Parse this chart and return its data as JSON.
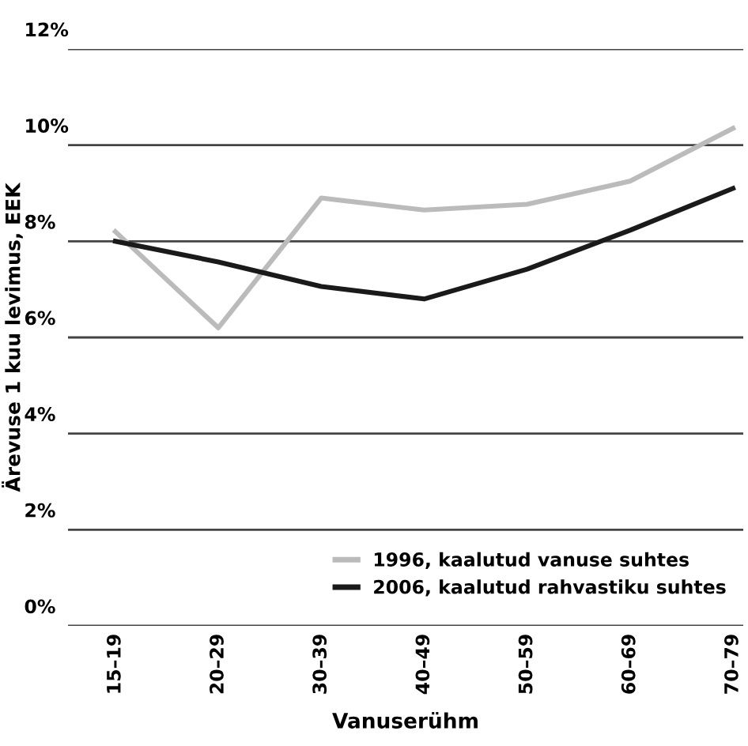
{
  "chart_data": {
    "type": "line",
    "xlabel": "Vanuserühm",
    "ylabel": "Ärevuse 1 kuu levimus, EEK",
    "categories": [
      "15–19",
      "20–29",
      "30–39",
      "40–49",
      "50–59",
      "60–69",
      "70–79"
    ],
    "series": [
      {
        "name": "1996, kaalutud vanuse suhtes",
        "color": "#bbbbbb",
        "values": [
          8.2,
          6.2,
          8.9,
          8.65,
          8.77,
          9.25,
          10.35
        ]
      },
      {
        "name": "2006, kaalutud rahvastiku suhtes",
        "color": "#1a1a1a",
        "values": [
          8.0,
          7.57,
          7.06,
          6.8,
          7.42,
          8.23,
          9.1
        ]
      }
    ],
    "ylim": [
      0,
      12
    ],
    "yticks": [
      {
        "value": 0,
        "label": "0%"
      },
      {
        "value": 2,
        "label": "2%"
      },
      {
        "value": 4,
        "label": "4%"
      },
      {
        "value": 6,
        "label": "6%"
      },
      {
        "value": 8,
        "label": "8%"
      },
      {
        "value": 10,
        "label": "10%"
      },
      {
        "value": 12,
        "label": "12%"
      }
    ],
    "grid": "y",
    "legend": "bottom right",
    "marker": "none",
    "line_style": "solid"
  }
}
